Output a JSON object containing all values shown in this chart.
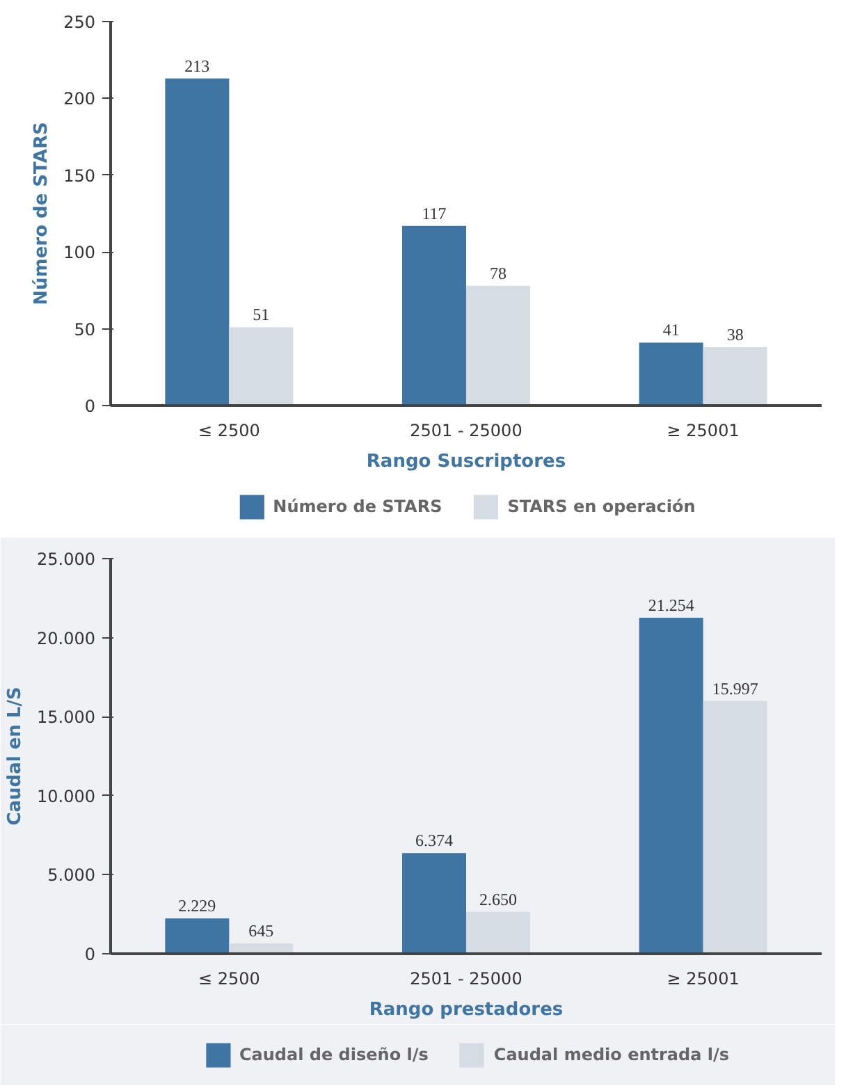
{
  "chart_data": [
    {
      "type": "bar",
      "xlabel": "Rango Suscriptores",
      "ylabel": "Número de STARS",
      "categories": [
        "≤ 2500",
        "2501 - 25000",
        "≥ 25001"
      ],
      "ylim": [
        0,
        250
      ],
      "yticks": [
        0,
        50,
        100,
        150,
        200,
        250
      ],
      "legend": "bottom",
      "data_labels": true,
      "series": [
        {
          "name": "Número de STARS",
          "color": "#3f75a2",
          "values": [
            213,
            117,
            41
          ]
        },
        {
          "name": "STARS en operación",
          "color": "#d5dce4",
          "values": [
            51,
            78,
            38
          ]
        }
      ]
    },
    {
      "type": "bar",
      "xlabel": "Rango prestadores",
      "ylabel": "Caudal en L/S",
      "categories": [
        "≤ 2500",
        "2501 - 25000",
        "≥ 25001"
      ],
      "ylim": [
        0,
        25000
      ],
      "yticks": [
        0,
        {
          "value": 5000,
          "label": "5.000"
        },
        {
          "value": 10000,
          "label": "10.000"
        },
        {
          "value": 15000,
          "label": "15.000"
        },
        {
          "value": 20000,
          "label": "20.000"
        },
        {
          "value": 25000,
          "label": "25.000"
        }
      ],
      "legend": "bottom",
      "series": [
        {
          "name": "Caudal de diseño l/s",
          "color": "#3f75a2",
          "values": [
            2229,
            6374,
            21254
          ],
          "value_labels": [
            "2.229",
            "6.374",
            "21.254"
          ]
        },
        {
          "name": "Caudal medio entrada l/s",
          "color": "#d5dce4",
          "values": [
            645,
            2650,
            15997
          ],
          "value_labels": [
            "645",
            "2.650",
            "15.997"
          ]
        }
      ]
    }
  ]
}
